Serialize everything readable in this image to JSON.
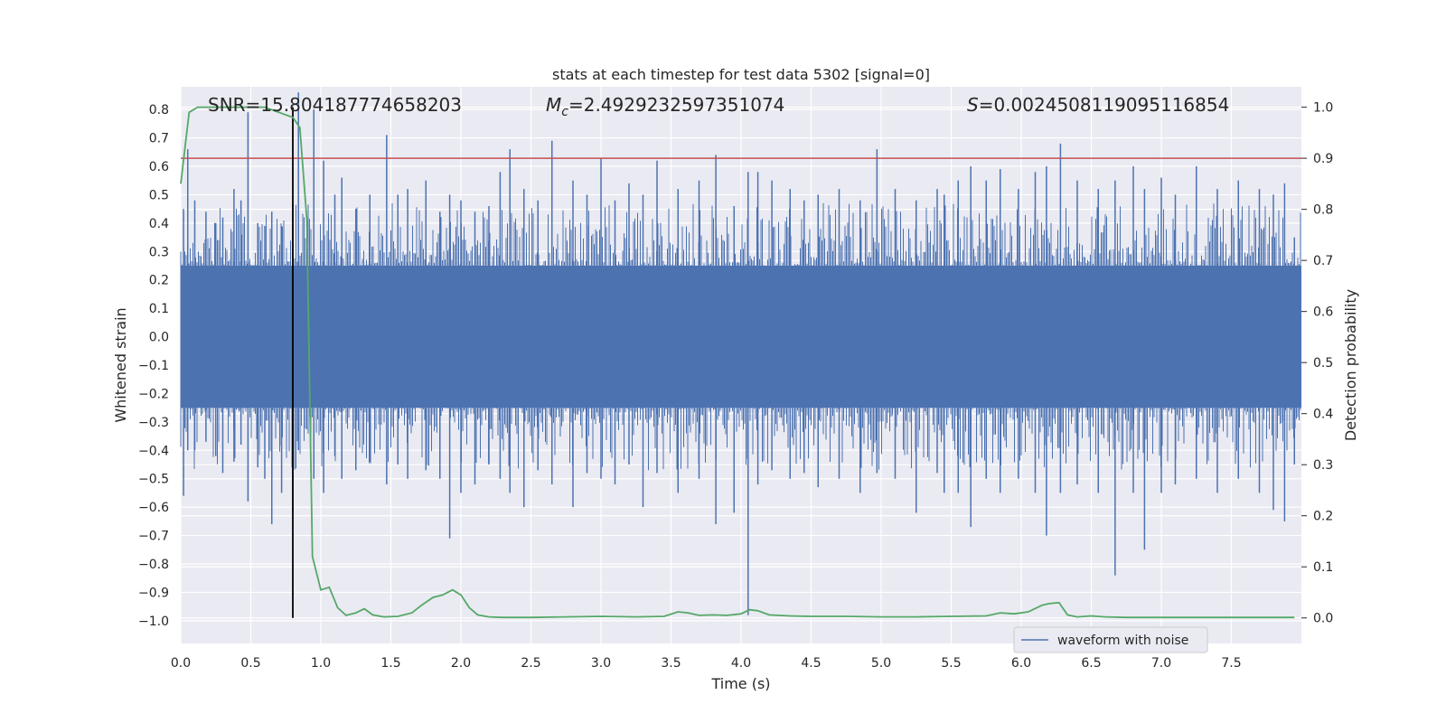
{
  "chart_data": {
    "type": "line",
    "title": "stats at each timestep for test data 5302 [signal=0]",
    "xlabel": "Time (s)",
    "ylabel_left": "Whitened strain",
    "ylabel_right": "Detection probability",
    "xlim": [
      0.0,
      8.0
    ],
    "ylim_left": [
      -1.08,
      0.88
    ],
    "ylim_right": [
      -0.05,
      1.04
    ],
    "grid": true,
    "legend_position": "lower-right",
    "x_ticks": [
      "0.0",
      "0.5",
      "1.0",
      "1.5",
      "2.0",
      "2.5",
      "3.0",
      "3.5",
      "4.0",
      "4.5",
      "5.0",
      "5.5",
      "6.0",
      "6.5",
      "7.0",
      "7.5"
    ],
    "y_left_ticks": [
      "0.8",
      "0.7",
      "0.6",
      "0.5",
      "0.4",
      "0.3",
      "0.2",
      "0.1",
      "0.0",
      "−0.1",
      "−0.2",
      "−0.3",
      "−0.4",
      "−0.5",
      "−0.6",
      "−0.7",
      "−0.8",
      "−0.9",
      "−1.0"
    ],
    "y_right_ticks": [
      "1.0",
      "0.9",
      "0.8",
      "0.7",
      "0.6",
      "0.5",
      "0.4",
      "0.3",
      "0.2",
      "0.1",
      "0.0"
    ],
    "annotations": {
      "snr": "SNR=15.804187774658203",
      "mc_sym": "M",
      "mc_sub": "c",
      "mc_val": "=2.4929232597351074",
      "s_sym": "S",
      "s_val": "=0.0024508119095116854"
    },
    "threshold": {
      "prob": 0.9,
      "color": "#c44e52"
    },
    "marker_time": 0.8,
    "legend": [
      {
        "label": "waveform with noise",
        "color": "#4c72b0"
      }
    ],
    "waveform": {
      "name": "waveform with noise",
      "color": "#4c72b0",
      "band": [
        -0.25,
        0.25
      ],
      "spikes": [
        [
          0.02,
          0.45,
          -0.56
        ],
        [
          0.05,
          0.66,
          -0.4
        ],
        [
          0.1,
          0.48,
          -0.4
        ],
        [
          0.18,
          0.44,
          -0.37
        ],
        [
          0.25,
          0.4,
          -0.42
        ],
        [
          0.3,
          0.42,
          -0.48
        ],
        [
          0.38,
          0.52,
          -0.44
        ],
        [
          0.43,
          0.48,
          -0.38
        ],
        [
          0.48,
          0.79,
          -0.58
        ],
        [
          0.55,
          0.4,
          -0.46
        ],
        [
          0.6,
          0.39,
          -0.5
        ],
        [
          0.65,
          0.44,
          -0.66
        ],
        [
          0.72,
          0.39,
          -0.55
        ],
        [
          0.8,
          0.47,
          -0.62
        ],
        [
          0.84,
          0.86,
          -0.4
        ],
        [
          0.95,
          0.8,
          -0.5
        ],
        [
          1.02,
          0.62,
          -0.55
        ],
        [
          1.1,
          0.5,
          -0.42
        ],
        [
          1.15,
          0.56,
          -0.5
        ],
        [
          1.25,
          0.45,
          -0.47
        ],
        [
          1.35,
          0.5,
          -0.44
        ],
        [
          1.47,
          0.71,
          -0.52
        ],
        [
          1.55,
          0.5,
          -0.45
        ],
        [
          1.62,
          0.52,
          -0.5
        ],
        [
          1.75,
          0.55,
          -0.47
        ],
        [
          1.85,
          0.44,
          -0.5
        ],
        [
          1.92,
          0.5,
          -0.71
        ],
        [
          2.0,
          0.48,
          -0.55
        ],
        [
          2.1,
          0.44,
          -0.52
        ],
        [
          2.2,
          0.46,
          -0.45
        ],
        [
          2.28,
          0.58,
          -0.5
        ],
        [
          2.35,
          0.66,
          -0.55
        ],
        [
          2.45,
          0.52,
          -0.6
        ],
        [
          2.55,
          0.48,
          -0.47
        ],
        [
          2.65,
          0.69,
          -0.52
        ],
        [
          2.8,
          0.55,
          -0.6
        ],
        [
          2.9,
          0.5,
          -0.48
        ],
        [
          3.0,
          0.63,
          -0.5
        ],
        [
          3.1,
          0.48,
          -0.52
        ],
        [
          3.2,
          0.54,
          -0.45
        ],
        [
          3.3,
          0.5,
          -0.6
        ],
        [
          3.4,
          0.62,
          -0.48
        ],
        [
          3.55,
          0.52,
          -0.55
        ],
        [
          3.7,
          0.55,
          -0.5
        ],
        [
          3.82,
          0.64,
          -0.66
        ],
        [
          3.95,
          0.46,
          -0.62
        ],
        [
          4.05,
          0.58,
          -0.98
        ],
        [
          4.12,
          0.58,
          -0.52
        ],
        [
          4.22,
          0.55,
          -0.47
        ],
        [
          4.35,
          0.52,
          -0.5
        ],
        [
          4.45,
          0.48,
          -0.48
        ],
        [
          4.55,
          0.5,
          -0.53
        ],
        [
          4.7,
          0.52,
          -0.5
        ],
        [
          4.85,
          0.48,
          -0.55
        ],
        [
          4.97,
          0.66,
          -0.48
        ],
        [
          5.1,
          0.52,
          -0.5
        ],
        [
          5.25,
          0.48,
          -0.62
        ],
        [
          5.4,
          0.52,
          -0.48
        ],
        [
          5.45,
          0.5,
          -0.55
        ],
        [
          5.55,
          0.55,
          -0.55
        ],
        [
          5.64,
          0.6,
          -0.67
        ],
        [
          5.75,
          0.55,
          -0.5
        ],
        [
          5.85,
          0.59,
          -0.55
        ],
        [
          5.98,
          0.52,
          -0.5
        ],
        [
          6.1,
          0.58,
          -0.55
        ],
        [
          6.18,
          0.6,
          -0.7
        ],
        [
          6.28,
          0.68,
          -0.55
        ],
        [
          6.4,
          0.55,
          -0.52
        ],
        [
          6.55,
          0.52,
          -0.55
        ],
        [
          6.67,
          0.55,
          -0.84
        ],
        [
          6.8,
          0.6,
          -0.55
        ],
        [
          6.88,
          0.52,
          -0.75
        ],
        [
          7.0,
          0.56,
          -0.55
        ],
        [
          7.1,
          0.5,
          -0.52
        ],
        [
          7.25,
          0.6,
          -0.5
        ],
        [
          7.4,
          0.52,
          -0.55
        ],
        [
          7.55,
          0.55,
          -0.5
        ],
        [
          7.7,
          0.52,
          -0.55
        ],
        [
          7.8,
          0.5,
          -0.61
        ],
        [
          7.88,
          0.54,
          -0.65
        ],
        [
          7.95,
          0.35,
          -0.45
        ]
      ]
    },
    "probability": {
      "color": "#55a868",
      "x": [
        0.0,
        0.06,
        0.12,
        0.2,
        0.3,
        0.4,
        0.5,
        0.6,
        0.7,
        0.8,
        0.85,
        0.9,
        0.94,
        1.0,
        1.06,
        1.12,
        1.18,
        1.25,
        1.31,
        1.37,
        1.45,
        1.55,
        1.65,
        1.72,
        1.8,
        1.87,
        1.94,
        2.0,
        2.06,
        2.12,
        2.2,
        2.3,
        2.4,
        2.5,
        2.75,
        3.0,
        3.25,
        3.45,
        3.55,
        3.62,
        3.7,
        3.8,
        3.9,
        4.0,
        4.06,
        4.12,
        4.2,
        4.35,
        4.5,
        4.75,
        5.0,
        5.25,
        5.5,
        5.75,
        5.85,
        5.95,
        6.05,
        6.15,
        6.2,
        6.27,
        6.33,
        6.4,
        6.5,
        6.6,
        6.75,
        7.0,
        7.25,
        7.5,
        7.75,
        7.95
      ],
      "y": [
        0.85,
        0.99,
        1.0,
        1.0,
        1.0,
        1.0,
        1.0,
        1.0,
        0.99,
        0.98,
        0.96,
        0.78,
        0.12,
        0.055,
        0.06,
        0.02,
        0.005,
        0.01,
        0.018,
        0.006,
        0.002,
        0.003,
        0.01,
        0.025,
        0.04,
        0.045,
        0.055,
        0.045,
        0.02,
        0.006,
        0.002,
        0.001,
        0.001,
        0.001,
        0.002,
        0.003,
        0.002,
        0.003,
        0.012,
        0.01,
        0.005,
        0.006,
        0.005,
        0.008,
        0.016,
        0.014,
        0.006,
        0.004,
        0.003,
        0.003,
        0.002,
        0.002,
        0.003,
        0.004,
        0.01,
        0.008,
        0.012,
        0.025,
        0.028,
        0.03,
        0.006,
        0.002,
        0.004,
        0.002,
        0.001,
        0.001,
        0.001,
        0.001,
        0.001,
        0.001
      ]
    }
  }
}
